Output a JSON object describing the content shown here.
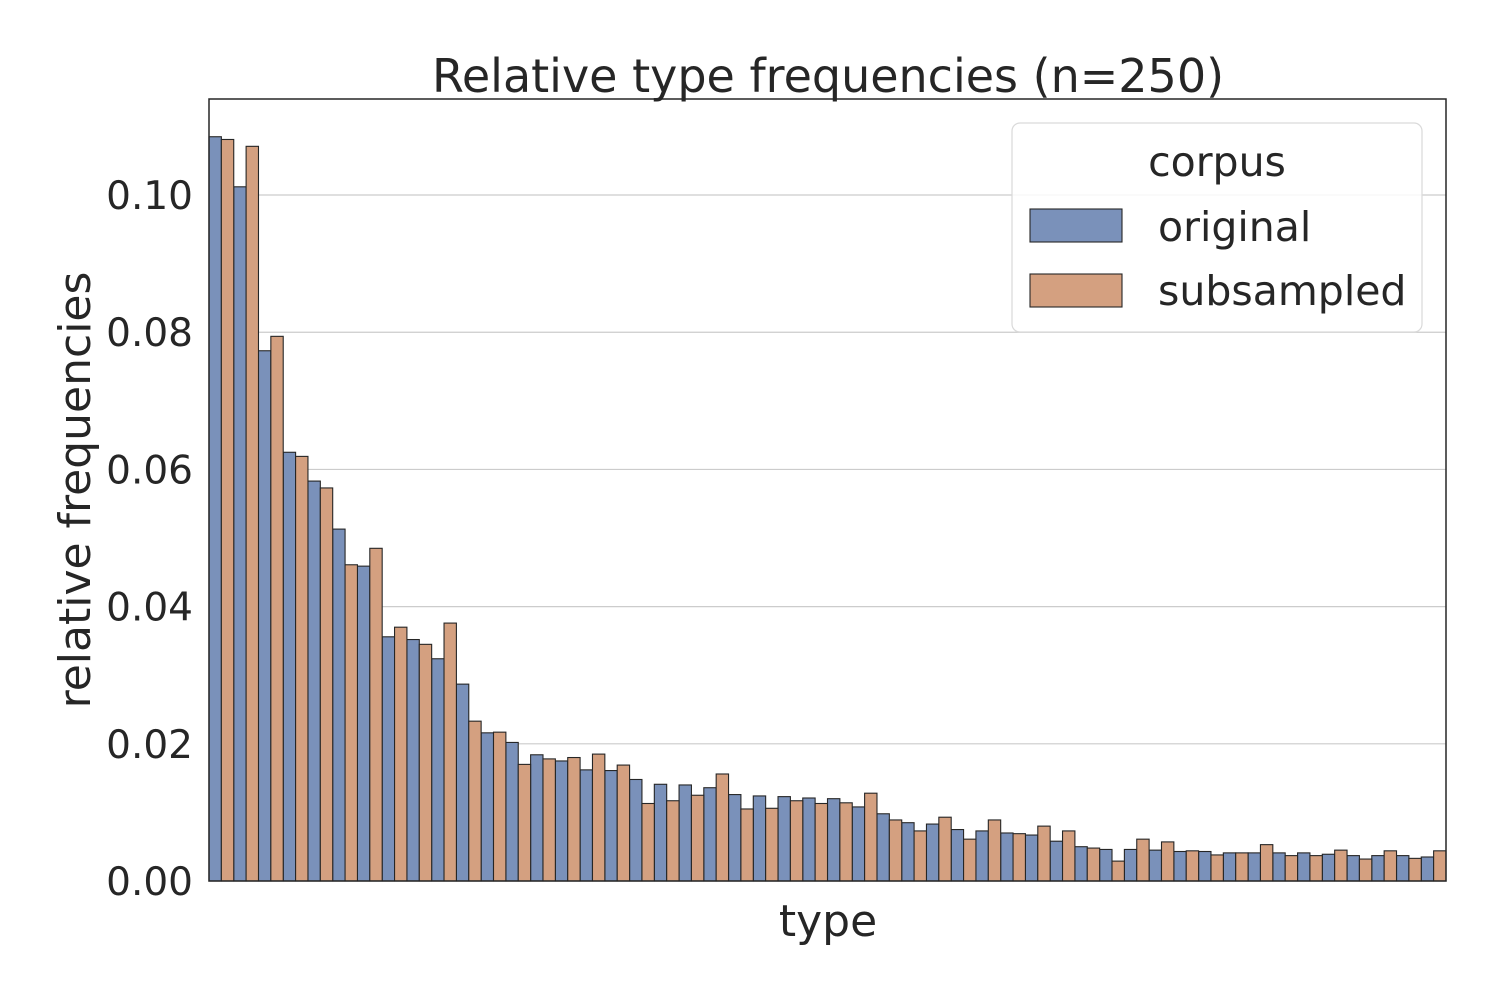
{
  "chart_data": {
    "type": "bar",
    "title": "Relative type frequencies (n=250)",
    "xlabel": "type",
    "ylabel": "relative frequencies",
    "ylim": [
      0,
      0.114
    ],
    "yticks": [
      "0.00",
      "0.02",
      "0.04",
      "0.06",
      "0.08",
      "0.10"
    ],
    "ytick_values": [
      0,
      0.02,
      0.04,
      0.06,
      0.08,
      0.1
    ],
    "grid": true,
    "legend": {
      "title": "corpus",
      "placement": "top-right"
    },
    "series": [
      {
        "name": "original",
        "color": "#7a91ba",
        "values": [
          0.1085,
          0.1012,
          0.0773,
          0.0625,
          0.0583,
          0.0513,
          0.0459,
          0.0356,
          0.0352,
          0.0324,
          0.0287,
          0.0216,
          0.0202,
          0.0184,
          0.0175,
          0.0162,
          0.0161,
          0.0148,
          0.0141,
          0.014,
          0.0136,
          0.0126,
          0.0124,
          0.0123,
          0.0121,
          0.012,
          0.0108,
          0.0098,
          0.0085,
          0.0083,
          0.0075,
          0.0073,
          0.007,
          0.0067,
          0.0058,
          0.005,
          0.0046,
          0.0046,
          0.0045,
          0.0043,
          0.0043,
          0.0041,
          0.0041,
          0.0041,
          0.0041,
          0.0039,
          0.0037,
          0.0037,
          0.0037,
          0.0035
        ]
      },
      {
        "name": "subsampled",
        "color": "#d4a080",
        "values": [
          0.1081,
          0.1071,
          0.0794,
          0.0619,
          0.0573,
          0.0461,
          0.0485,
          0.037,
          0.0345,
          0.0376,
          0.0233,
          0.0217,
          0.017,
          0.0178,
          0.018,
          0.0185,
          0.0169,
          0.0113,
          0.0117,
          0.0125,
          0.0156,
          0.0105,
          0.0106,
          0.0117,
          0.0113,
          0.0114,
          0.0128,
          0.0089,
          0.0073,
          0.0093,
          0.0061,
          0.0089,
          0.0069,
          0.008,
          0.0073,
          0.0048,
          0.0029,
          0.0061,
          0.0057,
          0.0044,
          0.0038,
          0.0041,
          0.0053,
          0.0037,
          0.0037,
          0.0045,
          0.0032,
          0.0044,
          0.0033,
          0.0044
        ]
      }
    ]
  }
}
